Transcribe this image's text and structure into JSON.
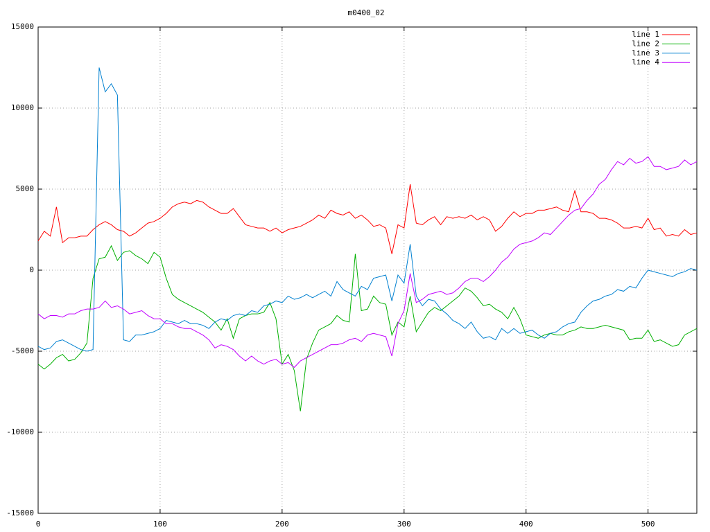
{
  "chart_data": {
    "type": "line",
    "title": "m0400_02",
    "x": [
      0,
      5,
      10,
      15,
      20,
      25,
      30,
      35,
      40,
      45,
      50,
      55,
      60,
      65,
      70,
      75,
      80,
      85,
      90,
      95,
      100,
      105,
      110,
      115,
      120,
      125,
      130,
      135,
      140,
      145,
      150,
      155,
      160,
      165,
      170,
      175,
      180,
      185,
      190,
      195,
      200,
      205,
      210,
      215,
      220,
      225,
      230,
      235,
      240,
      245,
      250,
      255,
      260,
      265,
      270,
      275,
      280,
      285,
      290,
      295,
      300,
      305,
      310,
      315,
      320,
      325,
      330,
      335,
      340,
      345,
      350,
      355,
      360,
      365,
      370,
      375,
      380,
      385,
      390,
      395,
      400,
      405,
      410,
      415,
      420,
      425,
      430,
      435,
      440,
      445,
      450,
      455,
      460,
      465,
      470,
      475,
      480,
      485,
      490,
      495,
      500,
      505,
      510,
      515,
      520,
      525,
      530,
      535,
      540
    ],
    "series": [
      {
        "name": "line 1",
        "color": "#ff0000",
        "values": [
          1800,
          2400,
          2100,
          3900,
          1700,
          2000,
          2000,
          2100,
          2100,
          2500,
          2800,
          3000,
          2800,
          2500,
          2400,
          2100,
          2300,
          2600,
          2900,
          3000,
          3200,
          3500,
          3900,
          4100,
          4200,
          4100,
          4300,
          4200,
          3900,
          3700,
          3500,
          3500,
          3800,
          3300,
          2800,
          2700,
          2600,
          2600,
          2400,
          2600,
          2300,
          2500,
          2600,
          2700,
          2900,
          3100,
          3400,
          3200,
          3700,
          3500,
          3400,
          3600,
          3200,
          3400,
          3100,
          2700,
          2800,
          2600,
          1000,
          2800,
          2600,
          5300,
          2900,
          2800,
          3100,
          3300,
          2800,
          3300,
          3200,
          3300,
          3200,
          3400,
          3100,
          3300,
          3100,
          2400,
          2700,
          3200,
          3600,
          3300,
          3500,
          3500,
          3700,
          3700,
          3800,
          3900,
          3700,
          3600,
          4900,
          3600,
          3600,
          3500,
          3200,
          3200,
          3100,
          2900,
          2600,
          2600,
          2700,
          2600,
          3200,
          2500,
          2600,
          2100,
          2200,
          2100,
          2500,
          2200,
          2300
        ]
      },
      {
        "name": "line 2",
        "color": "#00b000",
        "values": [
          -5800,
          -6100,
          -5800,
          -5400,
          -5200,
          -5600,
          -5500,
          -5100,
          -4500,
          -500,
          700,
          800,
          1500,
          600,
          1100,
          1200,
          900,
          700,
          400,
          1100,
          800,
          -500,
          -1500,
          -1800,
          -2000,
          -2200,
          -2400,
          -2600,
          -2900,
          -3200,
          -3700,
          -3000,
          -4200,
          -3000,
          -2800,
          -2700,
          -2700,
          -2600,
          -2000,
          -3000,
          -5800,
          -5200,
          -6200,
          -8700,
          -5500,
          -4500,
          -3700,
          -3500,
          -3300,
          -2800,
          -3100,
          -3200,
          1000,
          -2500,
          -2400,
          -1600,
          -2000,
          -2100,
          -4000,
          -3200,
          -3500,
          -1600,
          -3800,
          -3200,
          -2600,
          -2300,
          -2500,
          -2200,
          -1900,
          -1600,
          -1100,
          -1300,
          -1700,
          -2200,
          -2100,
          -2400,
          -2600,
          -3000,
          -2300,
          -3000,
          -4000,
          -4100,
          -4200,
          -4000,
          -3900,
          -4000,
          -4000,
          -3800,
          -3700,
          -3500,
          -3600,
          -3600,
          -3500,
          -3400,
          -3500,
          -3600,
          -3700,
          -4300,
          -4200,
          -4200,
          -3700,
          -4400,
          -4300,
          -4500,
          -4700,
          -4600,
          -4000,
          -3800,
          -3600
        ]
      },
      {
        "name": "line 3",
        "color": "#0080d0",
        "values": [
          -4700,
          -4900,
          -4800,
          -4400,
          -4300,
          -4500,
          -4700,
          -4900,
          -5000,
          -4900,
          12500,
          11000,
          11500,
          10800,
          -4300,
          -4400,
          -4000,
          -4000,
          -3900,
          -3800,
          -3600,
          -3100,
          -3200,
          -3300,
          -3100,
          -3300,
          -3300,
          -3400,
          -3600,
          -3200,
          -3000,
          -3100,
          -2800,
          -2700,
          -2800,
          -2500,
          -2600,
          -2200,
          -2100,
          -1900,
          -2000,
          -1600,
          -1800,
          -1700,
          -1500,
          -1700,
          -1500,
          -1300,
          -1600,
          -700,
          -1200,
          -1400,
          -1600,
          -1000,
          -1200,
          -500,
          -400,
          -300,
          -1900,
          -300,
          -800,
          1600,
          -1600,
          -2200,
          -1800,
          -1900,
          -2400,
          -2700,
          -3100,
          -3300,
          -3600,
          -3200,
          -3800,
          -4200,
          -4100,
          -4300,
          -3600,
          -3900,
          -3600,
          -3900,
          -3800,
          -3700,
          -4000,
          -4200,
          -3900,
          -3800,
          -3500,
          -3300,
          -3200,
          -2600,
          -2200,
          -1900,
          -1800,
          -1600,
          -1500,
          -1200,
          -1300,
          -1000,
          -1100,
          -500,
          0,
          -100,
          -200,
          -300,
          -400,
          -200,
          -100,
          100,
          0
        ]
      },
      {
        "name": "line 4",
        "color": "#c000ff",
        "values": [
          -2700,
          -3000,
          -2800,
          -2800,
          -2900,
          -2700,
          -2700,
          -2500,
          -2400,
          -2400,
          -2300,
          -1900,
          -2300,
          -2200,
          -2400,
          -2700,
          -2600,
          -2500,
          -2800,
          -3000,
          -3000,
          -3300,
          -3300,
          -3500,
          -3600,
          -3600,
          -3800,
          -4000,
          -4300,
          -4800,
          -4600,
          -4700,
          -4900,
          -5300,
          -5600,
          -5300,
          -5600,
          -5800,
          -5600,
          -5500,
          -5800,
          -5700,
          -6000,
          -5600,
          -5400,
          -5200,
          -5000,
          -4800,
          -4600,
          -4600,
          -4500,
          -4300,
          -4200,
          -4400,
          -4000,
          -3900,
          -4000,
          -4100,
          -5300,
          -3300,
          -2500,
          -200,
          -2000,
          -1800,
          -1500,
          -1400,
          -1300,
          -1500,
          -1400,
          -1100,
          -700,
          -500,
          -500,
          -700,
          -400,
          0,
          500,
          800,
          1300,
          1600,
          1700,
          1800,
          2000,
          2300,
          2200,
          2600,
          3000,
          3400,
          3700,
          3800,
          4300,
          4700,
          5300,
          5600,
          6200,
          6700,
          6500,
          6900,
          6600,
          6700,
          7000,
          6400,
          6400,
          6200,
          6300,
          6400,
          6800,
          6500,
          6700
        ]
      }
    ],
    "xlim": [
      0,
      540
    ],
    "xticks": [
      0,
      100,
      200,
      300,
      400,
      500
    ],
    "ylim": [
      -15000,
      15000
    ],
    "yticks": [
      -15000,
      -10000,
      -5000,
      0,
      5000,
      10000,
      15000
    ],
    "grid": true,
    "legend": "top-right"
  }
}
